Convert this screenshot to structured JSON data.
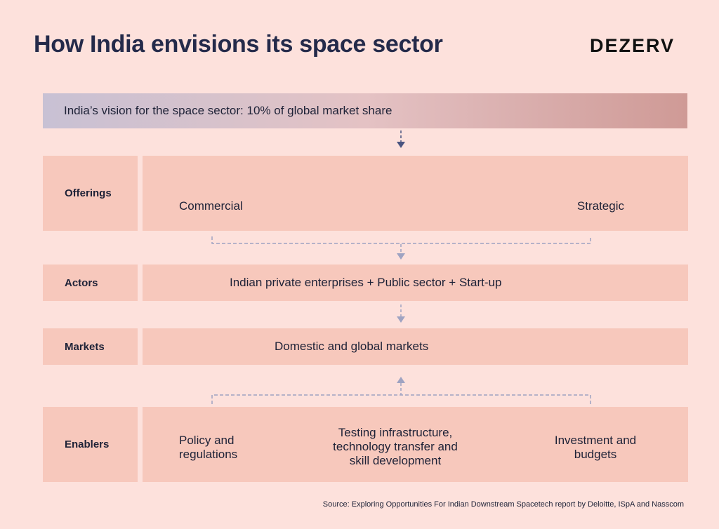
{
  "header": {
    "title": "How India envisions its space sector",
    "brand": "DEZERV"
  },
  "vision": {
    "text": "India’s vision for the space sector: 10% of global market share"
  },
  "rows": {
    "offerings": {
      "label": "Offerings",
      "items": [
        "Commercial",
        "Strategic"
      ]
    },
    "actors": {
      "label": "Actors",
      "text": "Indian private enterprises + Public sector + Start-up"
    },
    "markets": {
      "label": "Markets",
      "text": "Domestic and global markets"
    },
    "enablers": {
      "label": "Enablers",
      "items": [
        "Policy and\nregulations",
        "Testing infrastructure,\ntechnology transfer and\nskill development",
        "Investment and\nbudgets"
      ]
    }
  },
  "footer": {
    "source": "Source: Exploring Opportunities For Indian Downstream Spacetech report by Deloitte, ISpA and Nasscom"
  },
  "colors": {
    "background": "#fde1dc",
    "box": "#f7c8bc",
    "connector": "#9fa3c2",
    "arrow_dark": "#4a5480"
  }
}
